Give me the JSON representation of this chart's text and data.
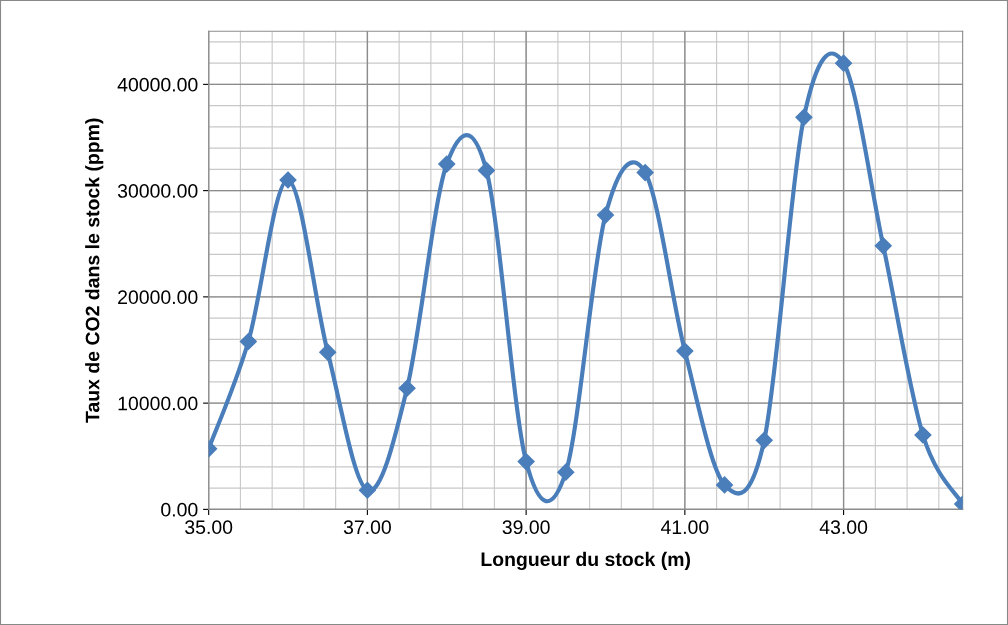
{
  "chart_data": {
    "type": "line",
    "xlabel": "Longueur du stock (m)",
    "ylabel": "Taux de CO2 dans le stock (ppm)",
    "x": [
      35.0,
      35.5,
      36.0,
      36.5,
      37.0,
      37.5,
      38.0,
      38.5,
      39.0,
      39.5,
      40.0,
      40.5,
      41.0,
      41.5,
      42.0,
      42.5,
      43.0,
      43.5,
      44.0,
      44.5
    ],
    "series": [
      {
        "color": "#4a7ebb",
        "values": [
          5700,
          15800,
          31000,
          14800,
          1800,
          11400,
          32500,
          31900,
          4500,
          3500,
          27700,
          31700,
          14900,
          2300,
          6500,
          36900,
          42000,
          24800,
          7000,
          500
        ]
      }
    ],
    "xlim": [
      35,
      44.5
    ],
    "xticks": [
      {
        "value": 35,
        "label": "35.00"
      },
      {
        "value": 37,
        "label": "37.00"
      },
      {
        "value": 39,
        "label": "39.00"
      },
      {
        "value": 41,
        "label": "41.00"
      },
      {
        "value": 43,
        "label": "43.00"
      }
    ],
    "ylim": [
      0,
      45000
    ],
    "yticks": [
      {
        "value": 0,
        "label": "0.00"
      },
      {
        "value": 10000,
        "label": "10000.00"
      },
      {
        "value": 20000,
        "label": "20000.00"
      },
      {
        "value": 30000,
        "label": "30000.00"
      },
      {
        "value": 40000,
        "label": "40000.00"
      }
    ],
    "grid": true,
    "marker": "diamond",
    "line_style": "solid",
    "legend": false
  }
}
